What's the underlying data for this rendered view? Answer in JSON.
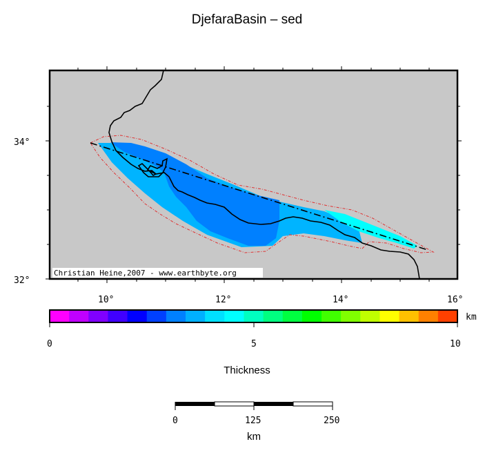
{
  "title": "DjefaraBasin – sed",
  "map": {
    "lat_ticks": [
      "34°",
      "32°"
    ],
    "lon_ticks": [
      "10°",
      "12°",
      "14°",
      "16°"
    ],
    "credit": "Christian Heine,2007 - www.earthbyte.org",
    "background_color": "#c8c8c8",
    "coast_color": "#000000",
    "outline_color": "#e03030",
    "fill_colors": [
      "#00b4ff",
      "#0080ff",
      "#00ffff"
    ]
  },
  "colorbar": {
    "title": "Thickness",
    "unit": "km",
    "tick_labels": [
      "0",
      "5",
      "10"
    ],
    "colors": [
      "#ff00ff",
      "#c000ff",
      "#8000ff",
      "#4000ff",
      "#0000ff",
      "#0040ff",
      "#0080ff",
      "#00b0ff",
      "#00e0ff",
      "#00ffff",
      "#00ffc0",
      "#00ff80",
      "#00ff40",
      "#00ff00",
      "#40ff00",
      "#80ff00",
      "#c0ff00",
      "#ffff00",
      "#ffc000",
      "#ff8000",
      "#ff4000"
    ]
  },
  "scalebar": {
    "tick_labels": [
      "0",
      "125",
      "250"
    ],
    "unit": "km"
  }
}
